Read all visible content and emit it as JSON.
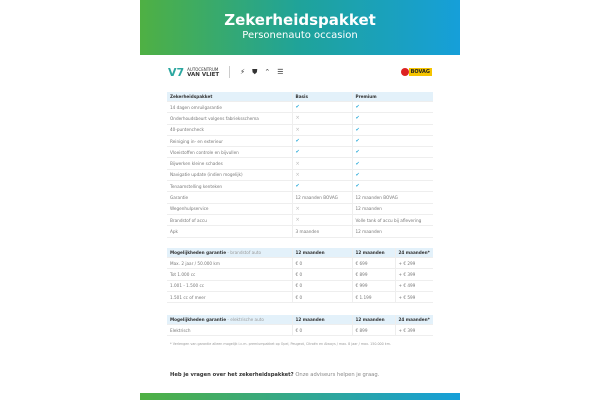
{
  "header": {
    "title": "Zekerheidspakket",
    "subtitle": "Personenauto occasion"
  },
  "logos": {
    "dealer_line1": "AUTOCENTRUM",
    "dealer_line2": "VAN VLIET",
    "brands": [
      "opel-logo",
      "peugeot-logo",
      "citroen-logo",
      "ds-logo"
    ],
    "bovag": "BOVAG"
  },
  "table": {
    "headers": [
      "Zekerheidspakket",
      "Basis",
      "Premium"
    ],
    "rows": [
      [
        "14 dagen omruilgarantie",
        "check",
        "check"
      ],
      [
        "Onderhoudsbeurt volgens fabrieksschema",
        "cross",
        "check"
      ],
      [
        "40-puntencheck",
        "cross",
        "check"
      ],
      [
        "Reiniging in- en exterieur",
        "check",
        "check"
      ],
      [
        "Vloeistoffen controle en bijvullen",
        "check",
        "check"
      ],
      [
        "Bijwerken kleine schades",
        "cross",
        "check"
      ],
      [
        "Navigatie update (indien mogelijk)",
        "cross",
        "check"
      ],
      [
        "Tenaamstelling kenteken",
        "check",
        "check"
      ],
      [
        "Garantie",
        "12 maanden BOVAG",
        "12 maanden BOVAG"
      ],
      [
        "Wegenhulpservice",
        "cross",
        "12 maanden"
      ],
      [
        "Brandstof of accu",
        "cross",
        "Volle tank of accu bij aflevering"
      ],
      [
        "Apk",
        "3 maanden",
        "12 maanden"
      ]
    ]
  },
  "fuel": {
    "title": "Mogelijkheden garantie",
    "subtitle": " - brandstof auto",
    "headers": [
      "12 maanden",
      "12 maanden",
      "24 maanden*"
    ],
    "rows": [
      [
        "Max. 2 jaar / 50.000 km",
        "€ 0",
        "€ 699",
        "+ € 299"
      ],
      [
        "Tot 1.000 cc",
        "€ 0",
        "€ 899",
        "+ € 399"
      ],
      [
        "1.001 - 1.500 cc",
        "€ 0",
        "€ 999",
        "+ € 499"
      ],
      [
        "1.501 cc of meer",
        "€ 0",
        "€ 1.199",
        "+ € 599"
      ]
    ]
  },
  "electric": {
    "title": "Mogelijkheden garantie",
    "subtitle": " - elektrische auto",
    "headers": [
      "12 maanden",
      "12 maanden",
      "24 maanden*"
    ],
    "rows": [
      [
        "Elektrisch",
        "€ 0",
        "€ 899",
        "+ € 399"
      ]
    ]
  },
  "footnote": "* Verlengen van garantie alleen mogelijk i.c.m. premiumpakket op Opel, Peugeot, Citroën en Always / max. 8 jaar / max. 150.000 km.",
  "question": {
    "bold": "Heb je vragen over het zekerheidspakket?",
    "text": " Onze adviseurs helpen je graag."
  },
  "colors": {
    "green": "#4fb043",
    "blue": "#169fd9",
    "check": "#29a9d8"
  }
}
